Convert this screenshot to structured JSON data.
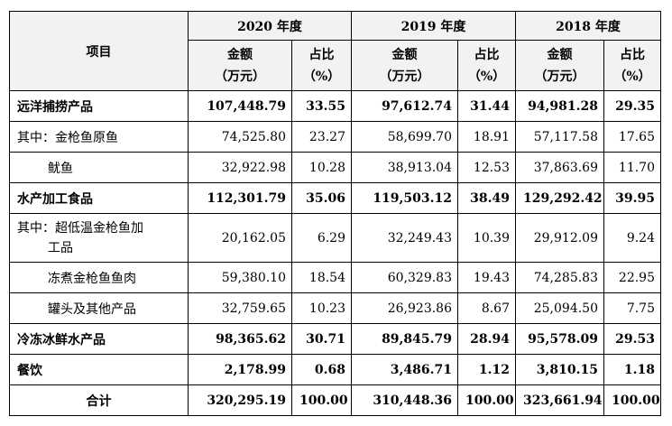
{
  "header": {
    "item": "项目",
    "years": [
      "2020 年度",
      "2019 年度",
      "2018 年度"
    ],
    "amount": "金额（万元）",
    "amount_line1": "金额",
    "amount_line2": "（万元）",
    "ratio_line1": "占比",
    "ratio_line2": "（%）"
  },
  "rows": [
    {
      "label": "远洋捕捞产品",
      "v": [
        "107,448.79",
        "33.55",
        "97,612.74",
        "31.44",
        "94,981.28",
        "29.35"
      ]
    },
    {
      "label": "其中：金枪鱼原鱼",
      "v": [
        "74,525.80",
        "23.27",
        "58,699.70",
        "18.91",
        "57,117.58",
        "17.65"
      ]
    },
    {
      "label": "鱿鱼",
      "v": [
        "32,922.98",
        "10.28",
        "38,913.04",
        "12.53",
        "37,863.69",
        "11.70"
      ]
    },
    {
      "label": "水产加工食品",
      "v": [
        "112,301.79",
        "35.06",
        "119,503.12",
        "38.49",
        "129,292.42",
        "39.95"
      ]
    },
    {
      "label": "其中：超低温金枪鱼加工品",
      "label1": "其中：超低温金枪鱼加",
      "label2": "工品",
      "v": [
        "20,162.05",
        "6.29",
        "32,249.43",
        "10.39",
        "29,912.09",
        "9.24"
      ]
    },
    {
      "label": "冻煮金枪鱼鱼肉",
      "v": [
        "59,380.10",
        "18.54",
        "60,329.83",
        "19.43",
        "74,285.83",
        "22.95"
      ]
    },
    {
      "label": "罐头及其他产品",
      "v": [
        "32,759.65",
        "10.23",
        "26,923.86",
        "8.67",
        "25,094.50",
        "7.75"
      ]
    },
    {
      "label": "冷冻冰鲜水产品",
      "v": [
        "98,365.62",
        "30.71",
        "89,845.79",
        "28.94",
        "95,578.09",
        "29.53"
      ]
    },
    {
      "label": "餐饮",
      "v": [
        "2,178.99",
        "0.68",
        "3,486.71",
        "1.12",
        "3,810.15",
        "1.18"
      ]
    },
    {
      "label": "合计",
      "v": [
        "320,295.19",
        "100.00",
        "310,448.36",
        "100.00",
        "323,661.94",
        "100.00"
      ]
    }
  ]
}
